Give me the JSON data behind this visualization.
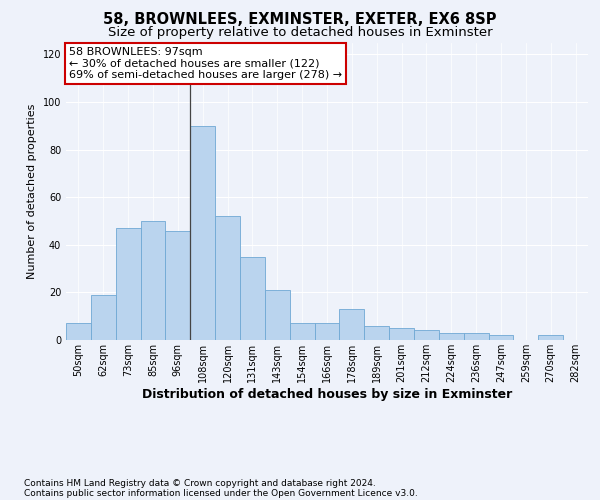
{
  "title1": "58, BROWNLEES, EXMINSTER, EXETER, EX6 8SP",
  "title2": "Size of property relative to detached houses in Exminster",
  "xlabel": "Distribution of detached houses by size in Exminster",
  "ylabel": "Number of detached properties",
  "bar_labels": [
    "50sqm",
    "62sqm",
    "73sqm",
    "85sqm",
    "96sqm",
    "108sqm",
    "120sqm",
    "131sqm",
    "143sqm",
    "154sqm",
    "166sqm",
    "178sqm",
    "189sqm",
    "201sqm",
    "212sqm",
    "224sqm",
    "236sqm",
    "247sqm",
    "259sqm",
    "270sqm",
    "282sqm"
  ],
  "bar_values": [
    7,
    19,
    47,
    50,
    46,
    90,
    52,
    35,
    21,
    7,
    7,
    13,
    6,
    5,
    4,
    3,
    3,
    2,
    0,
    2,
    0
  ],
  "bar_color": "#bad4ee",
  "bar_edge_color": "#6fa8d4",
  "annotation_title": "58 BROWNLEES: 97sqm",
  "annotation_line1": "← 30% of detached houses are smaller (122)",
  "annotation_line2": "69% of semi-detached houses are larger (278) →",
  "vline_x_idx": 4,
  "ylim": [
    0,
    125
  ],
  "yticks": [
    0,
    20,
    40,
    60,
    80,
    100,
    120
  ],
  "footer1": "Contains HM Land Registry data © Crown copyright and database right 2024.",
  "footer2": "Contains public sector information licensed under the Open Government Licence v3.0.",
  "background_color": "#eef2fa",
  "grid_color": "#ffffff",
  "annotation_box_color": "#ffffff",
  "annotation_box_edge": "#cc0000",
  "title_fontsize": 10.5,
  "subtitle_fontsize": 9.5,
  "ylabel_fontsize": 8,
  "xlabel_fontsize": 9,
  "tick_fontsize": 7,
  "annotation_fontsize": 8,
  "footer_fontsize": 6.5
}
